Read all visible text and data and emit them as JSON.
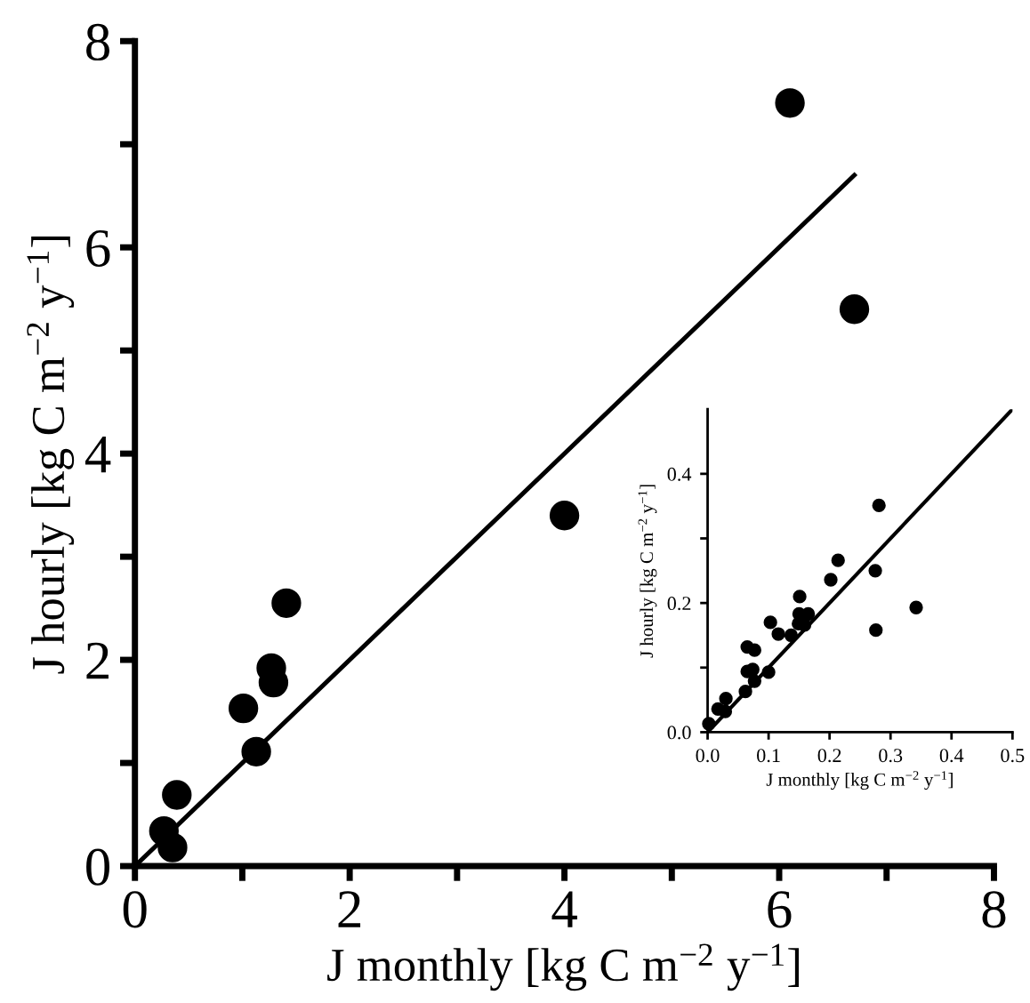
{
  "chart_data": [
    {
      "type": "scatter",
      "xlabel": "J monthly [kg C m$^{−2}$ y$^{−1}$]",
      "ylabel": "J hourly [kg C m$^{−2}$ y$^{−1}$]",
      "xlim": [
        0,
        8
      ],
      "ylim": [
        0,
        8
      ],
      "xticks": [
        0,
        {
          "value": 1,
          "label": null
        },
        2,
        {
          "value": 3,
          "label": null
        },
        4,
        {
          "value": 5,
          "label": null
        },
        6,
        {
          "value": 7,
          "label": null
        },
        8
      ],
      "yticks": [
        0,
        {
          "value": 1,
          "label": null
        },
        2,
        {
          "value": 3,
          "label": null
        },
        4,
        {
          "value": 5,
          "label": null
        },
        6,
        {
          "value": 7,
          "label": null
        },
        8
      ],
      "grid": false,
      "legend": false,
      "series": [
        {
          "marker": "circle",
          "color": "#000000",
          "x": [
            6.1,
            6.7,
            4.0,
            1.41,
            1.27,
            1.29,
            1.01,
            1.13,
            0.39,
            0.27,
            0.35
          ],
          "values": [
            7.4,
            5.4,
            3.4,
            2.55,
            1.92,
            1.78,
            1.53,
            1.11,
            0.69,
            0.34,
            0.18
          ]
        },
        {
          "type": "line",
          "marker": "none",
          "line_style": "solid",
          "color": "#000000",
          "x": [
            0,
            6.7
          ],
          "values": [
            0,
            6.7
          ]
        }
      ]
    },
    {
      "type": "scatter",
      "xlabel": "J monthly [kg C m$^{−2}$ y$^{−1}$]",
      "ylabel": "J hourly [kg C m$^{−2}$ y$^{−1}$]",
      "xlim": [
        0,
        0.5
      ],
      "ylim": [
        0,
        0.5
      ],
      "xticks": [
        {
          "value": 0,
          "label": "0.0"
        },
        0.1,
        0.2,
        0.3,
        0.4,
        0.5
      ],
      "yticks": [
        {
          "value": 0,
          "label": "0.0"
        },
        {
          "value": 0.1,
          "label": null
        },
        0.2,
        {
          "value": 0.3,
          "label": null
        },
        0.4
      ],
      "grid": false,
      "legend": false,
      "series": [
        {
          "marker": "circle",
          "color": "#000000",
          "x": [
            0.281,
            0.342,
            0.275,
            0.276,
            0.214,
            0.202,
            0.151,
            0.15,
            0.165,
            0.149,
            0.159,
            0.137,
            0.116,
            0.103,
            0.065,
            0.077,
            0.065,
            0.062,
            0.077,
            0.1,
            0.074,
            0.03,
            0.017,
            0.029,
            0.002
          ],
          "values": [
            0.351,
            0.193,
            0.25,
            0.158,
            0.266,
            0.236,
            0.21,
            0.183,
            0.183,
            0.168,
            0.166,
            0.15,
            0.152,
            0.17,
            0.132,
            0.127,
            0.094,
            0.063,
            0.079,
            0.093,
            0.097,
            0.052,
            0.036,
            0.032,
            0.013
          ]
        },
        {
          "type": "line",
          "marker": "none",
          "line_style": "solid",
          "color": "#000000",
          "x": [
            0,
            0.5
          ],
          "values": [
            0,
            0.5
          ]
        }
      ]
    }
  ]
}
